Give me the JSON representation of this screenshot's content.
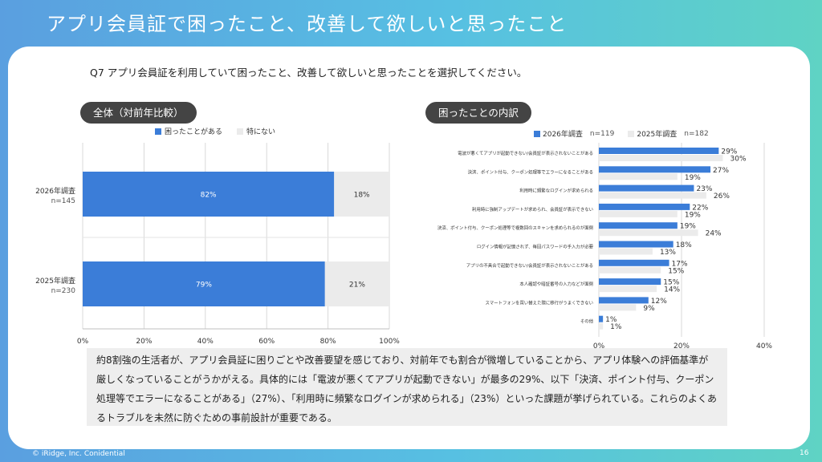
{
  "header": {
    "title": "アプリ会員証で困ったこと、改善して欲しいと思ったこと"
  },
  "question": "Q7 アプリ会員証を利用していて困ったこと、改善して欲しいと思ったことを選択してください。",
  "left_panel": {
    "pill": "全体（対前年比較）",
    "legend": [
      "困ったことがある",
      "特にない"
    ]
  },
  "right_panel": {
    "pill": "困ったことの内訳",
    "legend": [
      "2026年調査",
      "n=119",
      "2025年調査",
      "n=182"
    ]
  },
  "colors": {
    "primary": "#3b7dd8",
    "secondary": "#ebebeb",
    "pill": "#444444"
  },
  "chart_data": [
    {
      "type": "bar",
      "orientation": "horizontal-stacked",
      "categories": [
        "2026年調査",
        "2025年調査"
      ],
      "category_sub": [
        "n=145",
        "n=230"
      ],
      "series": [
        {
          "name": "困ったことがある",
          "values": [
            82,
            79
          ]
        },
        {
          "name": "特にない",
          "values": [
            18,
            21
          ]
        }
      ],
      "data_labels": [
        [
          "82%",
          "18%"
        ],
        [
          "79%",
          "21%"
        ]
      ],
      "xlim": [
        0,
        100
      ],
      "xticks": [
        "0%",
        "20%",
        "40%",
        "60%",
        "80%",
        "100%"
      ],
      "grid": true
    },
    {
      "type": "bar",
      "orientation": "horizontal-grouped",
      "categories": [
        "電波が悪くてアプリが起動できない/会員証が表示されないことがある",
        "決済、ポイント付与、クーポン処理等でエラーになることがある",
        "利用時に頻繁なログインが求められる",
        "利用時に強制アップデートが求められ、会員証が表示できない",
        "決済、ポイント付与、クーポン処理等で複数回のスキャンを求められるのが面倒",
        "ログイン情報が記憶されず、毎回パスワードの手入力が必要",
        "アプリの不具合で起動できない/会員証が表示されないことがある",
        "本人確認や暗証番号の入力などが面倒",
        "スマートフォンを買い替えた際に移行がうまくできない",
        "その他"
      ],
      "series": [
        {
          "name": "2026年調査",
          "values": [
            29,
            27,
            23,
            22,
            19,
            18,
            17,
            15,
            12,
            1
          ]
        },
        {
          "name": "2025年調査",
          "values": [
            30,
            19,
            26,
            19,
            24,
            13,
            15,
            14,
            9,
            1
          ]
        }
      ],
      "data_labels": [
        [
          "29%",
          "27%",
          "23%",
          "22%",
          "19%",
          "18%",
          "17%",
          "15%",
          "12%",
          "1%"
        ],
        [
          "30%",
          "19%",
          "26%",
          "19%",
          "24%",
          "13%",
          "15%",
          "14%",
          "9%",
          "1%"
        ]
      ],
      "xlim": [
        0,
        40
      ],
      "xticks": [
        "0%",
        "20%",
        "40%"
      ],
      "grid": true
    }
  ],
  "summary": "約8割強の生活者が、アプリ会員証に困りごとや改善要望を感じており、対前年でも割合が微増していることから、アプリ体験への評価基準が厳しくなっていることがうかがえる。具体的には「電波が悪くてアプリが起動できない」が最多の29%、以下「決済、ポイント付与、クーポン処理等でエラーになることがある」（27%）、「利用時に頻繁なログインが求められる」（23%）といった課題が挙げられている。これらのよくあるトラブルを未然に防ぐための事前設計が重要である。",
  "footer": {
    "copyright": "© iRidge, Inc. Conidential",
    "page": "16"
  }
}
